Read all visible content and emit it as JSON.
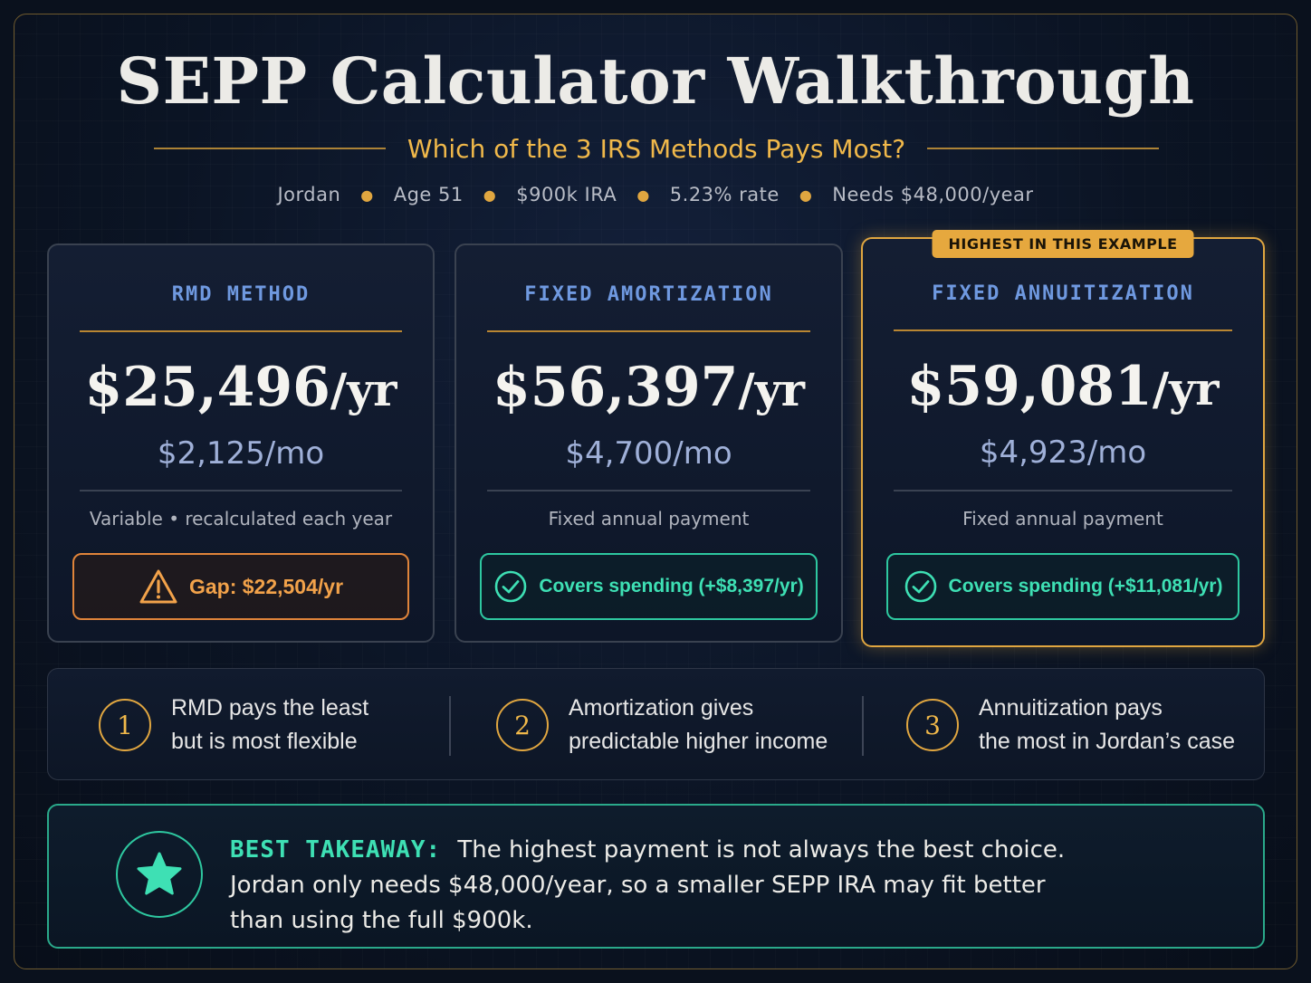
{
  "header": {
    "title": "SEPP Calculator Walkthrough",
    "subtitle": "Which of the 3 IRS Methods Pays Most?",
    "profile": [
      "Jordan",
      "Age 51",
      "$900k IRA",
      "5.23% rate",
      "Needs $48,000/year"
    ]
  },
  "cards": [
    {
      "title": "RMD METHOD",
      "annual": "$25,496",
      "annual_unit": "/yr",
      "monthly": "$2,125/mo",
      "description": "Variable • recalculated each year",
      "status": "Gap: $22,504/yr",
      "status_type": "warning",
      "status_icon": "warning-triangle-icon"
    },
    {
      "title": "FIXED AMORTIZATION",
      "annual": "$56,397",
      "annual_unit": "/yr",
      "monthly": "$4,700/mo",
      "description": "Fixed annual payment",
      "status": "Covers spending (+$8,397/yr)",
      "status_type": "ok",
      "status_icon": "check-circle-icon"
    },
    {
      "badge": "HIGHEST IN THIS EXAMPLE",
      "title": "FIXED ANNUITIZATION",
      "annual": "$59,081",
      "annual_unit": "/yr",
      "monthly": "$4,923/mo",
      "description": "Fixed annual payment",
      "status": "Covers spending (+$11,081/yr)",
      "status_type": "ok",
      "status_icon": "check-circle-icon"
    }
  ],
  "steps": [
    {
      "number": "1",
      "line1": "RMD pays the least",
      "line2": "but is most flexible"
    },
    {
      "number": "2",
      "line1": "Amortization gives",
      "line2": "predictable higher income"
    },
    {
      "number": "3",
      "line1": "Annuitization pays",
      "line2": "the most in Jordan’s case"
    }
  ],
  "takeaway": {
    "icon": "star-icon",
    "label": "BEST TAKEAWAY:",
    "line1": "The highest payment is not always the best choice.",
    "line2": "Jordan only needs $48,000/year, so a smaller SEPP IRA may fit better",
    "line3": "than using the full $900k."
  },
  "colors": {
    "gold": "#e0a640",
    "blue_title": "#6f99e0",
    "teal": "#3ee0b4",
    "warning": "#f2a24a"
  }
}
